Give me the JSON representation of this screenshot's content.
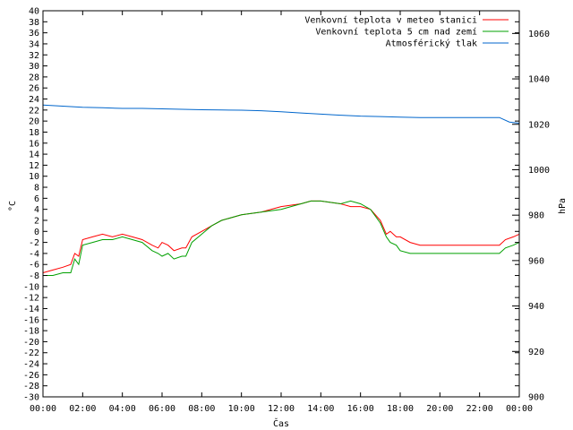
{
  "chart_data": {
    "type": "line",
    "xlabel": "Čas",
    "ylabel": "°C",
    "y2label": "hPa",
    "xlim": [
      "00:00",
      "24:00"
    ],
    "ylim": [
      -30,
      40
    ],
    "y2lim": [
      900,
      1070
    ],
    "xticks": [
      "00:00",
      "02:00",
      "04:00",
      "06:00",
      "08:00",
      "10:00",
      "12:00",
      "14:00",
      "16:00",
      "18:00",
      "20:00",
      "22:00",
      "00:00"
    ],
    "yticks": [
      40,
      38,
      36,
      34,
      32,
      30,
      28,
      26,
      24,
      22,
      20,
      18,
      16,
      14,
      12,
      10,
      8,
      6,
      4,
      2,
      0,
      -2,
      -4,
      -6,
      -8,
      -10,
      -12,
      -14,
      -16,
      -18,
      -20,
      -22,
      -24,
      -26,
      -28,
      -30
    ],
    "y2ticks": [
      1060,
      1040,
      1020,
      1000,
      980,
      960,
      940,
      920,
      900
    ],
    "grid": false,
    "legend_position": "top-right",
    "series": [
      {
        "name": "Venkovní teplota v meteo stanici",
        "color": "#ff0000",
        "axis": "left",
        "x": [
          0,
          0.5,
          1,
          1.4,
          1.6,
          1.8,
          2,
          2.5,
          3,
          3.5,
          4,
          4.5,
          5,
          5.5,
          5.8,
          6,
          6.3,
          6.6,
          7,
          7.2,
          7.5,
          8,
          8.5,
          9,
          10,
          11,
          12,
          13,
          13.5,
          14,
          15,
          15.5,
          16,
          16.5,
          17,
          17.3,
          17.5,
          17.8,
          18,
          18.5,
          19,
          20,
          21,
          22,
          23,
          23.3,
          23.7,
          24
        ],
        "y": [
          -7.5,
          -7,
          -6.5,
          -6,
          -4,
          -4.5,
          -1.5,
          -1,
          -0.5,
          -1,
          -0.5,
          -1,
          -1.5,
          -2.5,
          -3,
          -2,
          -2.5,
          -3.5,
          -3,
          -3,
          -1,
          0,
          1,
          2,
          3,
          3.5,
          4.5,
          5,
          5.5,
          5.5,
          5,
          4.5,
          4.5,
          4,
          2,
          -0.5,
          0,
          -1,
          -1,
          -2,
          -2.5,
          -2.5,
          -2.5,
          -2.5,
          -2.5,
          -1.5,
          -1,
          -0.5
        ]
      },
      {
        "name": "Venkovní teplota 5 cm nad zemí",
        "color": "#00a000",
        "axis": "left",
        "x": [
          0,
          0.5,
          1,
          1.4,
          1.6,
          1.8,
          2,
          2.5,
          3,
          3.5,
          4,
          4.5,
          5,
          5.5,
          5.8,
          6,
          6.3,
          6.6,
          7,
          7.2,
          7.5,
          8,
          8.5,
          9,
          10,
          11,
          12,
          13,
          13.5,
          14,
          15,
          15.5,
          16,
          16.5,
          17,
          17.3,
          17.5,
          17.8,
          18,
          18.5,
          19,
          20,
          21,
          22,
          23,
          23.3,
          23.7,
          24
        ],
        "y": [
          -8,
          -8,
          -7.5,
          -7.5,
          -5,
          -6,
          -2.5,
          -2,
          -1.5,
          -1.5,
          -1,
          -1.5,
          -2,
          -3.5,
          -4,
          -4.5,
          -4,
          -5,
          -4.5,
          -4.5,
          -2,
          -0.5,
          1,
          2,
          3,
          3.5,
          4,
          5,
          5.5,
          5.5,
          5,
          5.5,
          5,
          4,
          1.5,
          -1,
          -2,
          -2.5,
          -3.5,
          -4,
          -4,
          -4,
          -4,
          -4,
          -4,
          -3,
          -2.5,
          -2
        ]
      },
      {
        "name": "Atmosférický tlak",
        "color": "#0066cc",
        "axis": "right",
        "x": [
          0,
          1,
          2,
          3,
          4,
          5,
          6,
          7,
          8,
          9,
          10,
          11,
          12,
          13,
          14,
          15,
          16,
          17,
          18,
          19,
          20,
          21,
          22,
          23,
          23.5,
          24
        ],
        "y": [
          1028.5,
          1028,
          1027.5,
          1027.3,
          1027,
          1027,
          1026.8,
          1026.6,
          1026.4,
          1026.3,
          1026.2,
          1026,
          1025.5,
          1025,
          1024.5,
          1024,
          1023.6,
          1023.4,
          1023.2,
          1023,
          1023,
          1023,
          1023,
          1023,
          1021,
          1020.5
        ]
      }
    ]
  }
}
